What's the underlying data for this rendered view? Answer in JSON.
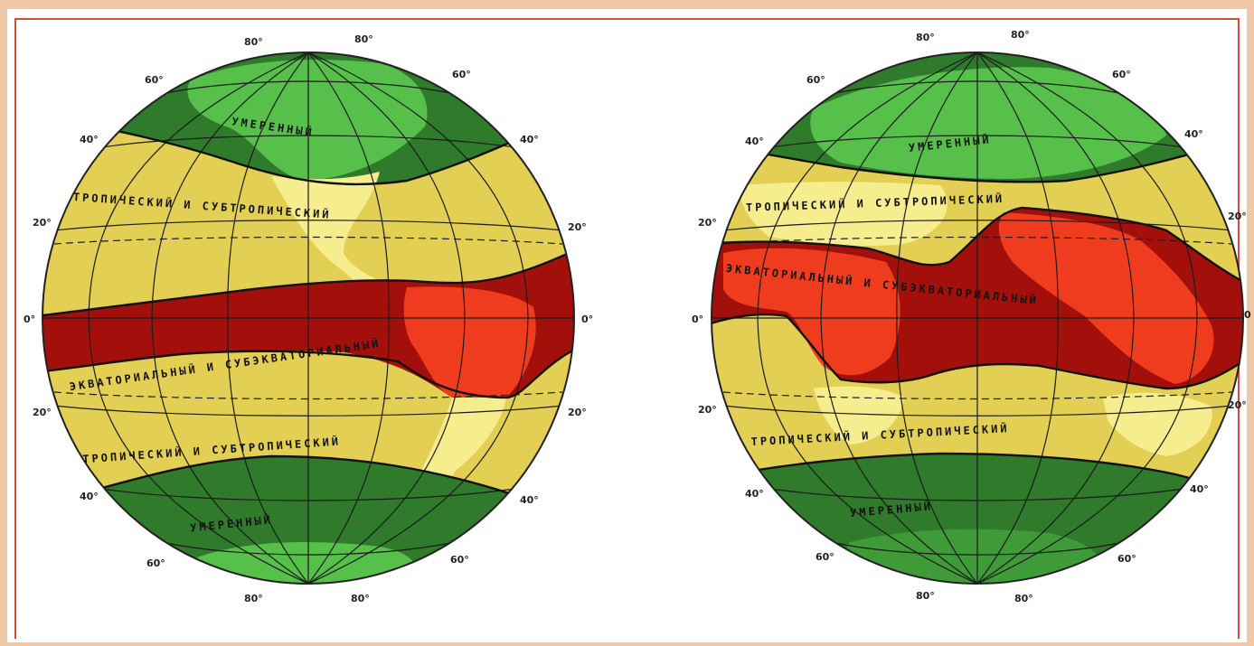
{
  "colors": {
    "cold_zone_dark": "#2f7a2b",
    "cold_zone_light": "#56c04a",
    "subtropical_zone": "#e2cf54",
    "equatorial_zone_dark": "#a30f0a",
    "equatorial_zone_light": "#f03c1e",
    "land_pale": "#f6ee8e",
    "frame_border": "#f2c9a6",
    "frame_line": "#d64a3a"
  },
  "globes": [
    {
      "id": "western",
      "lat_labels": {
        "north_80_left": "80°",
        "north_80_right": "80°",
        "north_60_left": "60°",
        "north_60_right": "60°",
        "north_40_left": "40°",
        "north_40_right": "40°",
        "north_20_left": "20°",
        "north_20_right": "20°",
        "equator_left": "0°",
        "equator_right": "0°",
        "south_20_left": "20°",
        "south_20_right": "20°",
        "south_40_left": "40°",
        "south_40_right": "40°",
        "south_60_left": "60°",
        "south_60_right": "60°",
        "south_80_left": "80°",
        "south_80_right": "80°"
      },
      "zone_labels": {
        "north_temperate": "УМЕРЕННЫЙ",
        "north_subtropical": "ТРОПИЧЕСКИЙ И СУБТРОПИЧЕСКИЙ",
        "equatorial": "ЭКВАТОРИАЛЬНЫЙ И СУБЭКВАТОРИАЛЬНЫЙ",
        "south_subtropical": "ТРОПИЧЕСКИЙ И СУБТРОПИЧЕСКИЙ",
        "south_temperate": "УМЕРЕННЫЙ"
      }
    },
    {
      "id": "eastern",
      "lat_labels": {
        "north_80_left": "80°",
        "north_80_right": "80°",
        "north_60_left": "60°",
        "north_60_right": "60°",
        "north_40_left": "40°",
        "north_40_right": "40°",
        "north_20_left": "20°",
        "north_20_right": "20°",
        "equator_left": "0°",
        "equator_right": "0",
        "south_20_left": "20°",
        "south_20_right": "20°",
        "south_40_left": "40°",
        "south_40_right": "40°",
        "south_60_left": "60°",
        "south_60_right": "60°",
        "south_80_left": "80°",
        "south_80_right": "80°"
      },
      "zone_labels": {
        "north_temperate": "УМЕРЕННЫЙ",
        "north_subtropical": "ТРОПИЧЕСКИЙ И СУБТРОПИЧЕСКИЙ",
        "equatorial": "ЭКВАТОРИАЛЬНЫЙ И СУБЭКВАТОРИАЛЬНЫЙ",
        "south_subtropical": "ТРОПИЧЕСКИЙ И СУБТРОПИЧЕСКИЙ",
        "south_temperate": "УМЕРЕННЫЙ"
      }
    }
  ]
}
